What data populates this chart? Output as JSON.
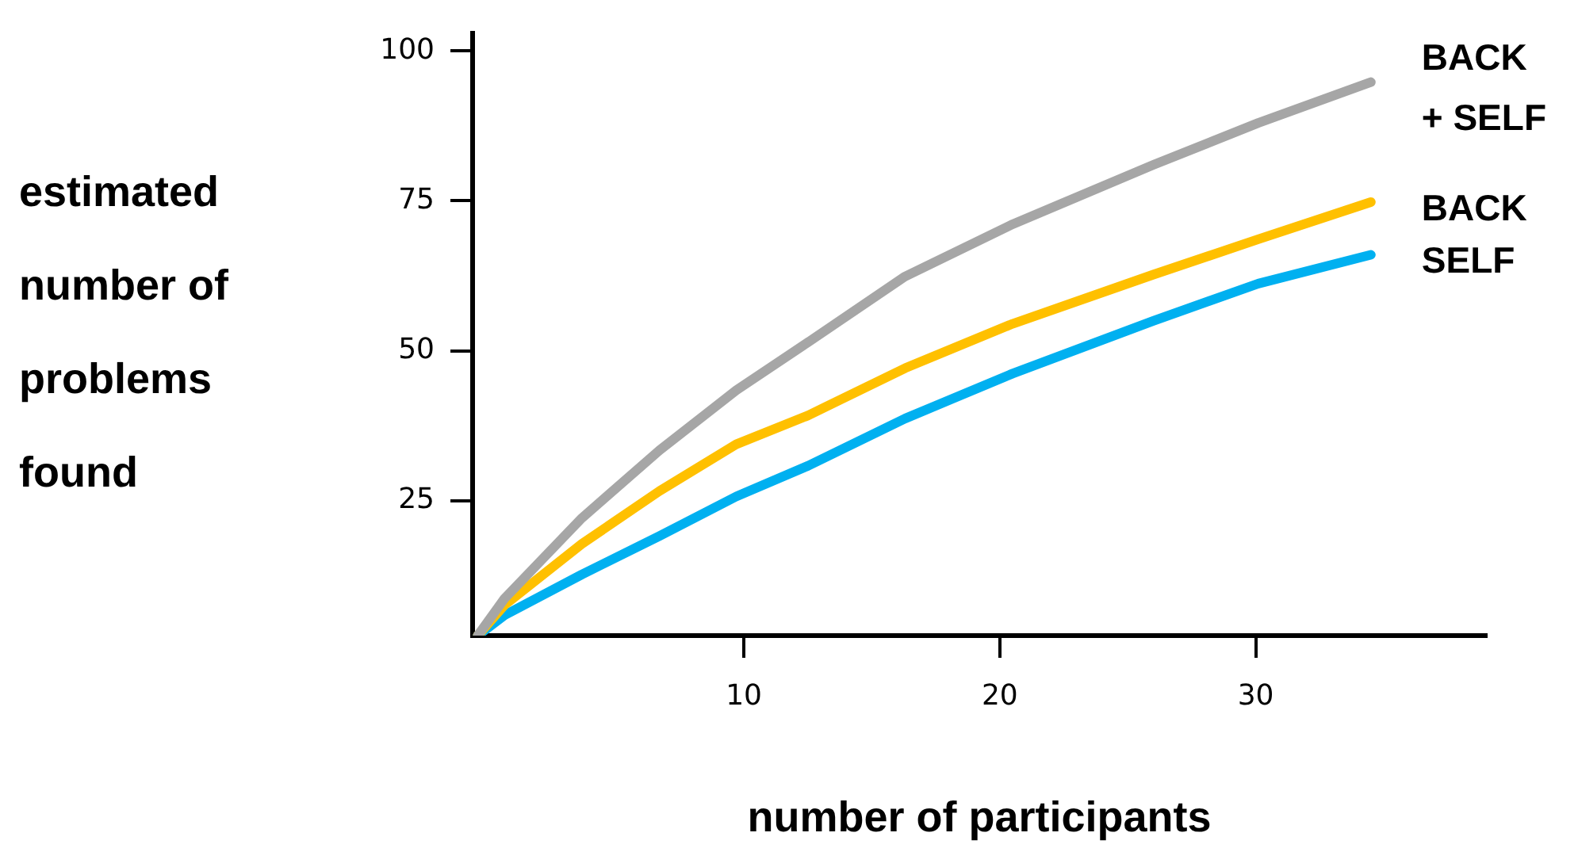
{
  "chart_data": {
    "type": "line",
    "xlabel": "number of participants",
    "ylabel": "estimated number of problems found",
    "xlim": [
      -0.6,
      39
    ],
    "ylim": [
      2.5,
      103
    ],
    "xticks": [
      10,
      20,
      30
    ],
    "yticks": [
      25,
      50,
      75,
      100
    ],
    "grid": false,
    "legend": false,
    "marker": "none",
    "line_style": "solid",
    "x": [
      -0.4,
      0.65,
      3.67,
      6.7,
      9.7,
      12.5,
      16.3,
      20.5,
      26,
      30.1,
      34.5
    ],
    "series": [
      {
        "name": "BACK + SELF",
        "color": "#a6a6a6",
        "values": [
          2.5,
          8.7,
          22.1,
          33.4,
          43.4,
          51.4,
          62.4,
          71.1,
          81,
          88,
          94.8
        ]
      },
      {
        "name": "BACK",
        "color": "#ffc000",
        "values": [
          2.5,
          7.6,
          17.8,
          26.6,
          34.4,
          39.2,
          47.1,
          54.5,
          62.7,
          68.6,
          74.8
        ]
      },
      {
        "name": "SELF",
        "color": "#00b0f0",
        "values": [
          2.5,
          5.9,
          12.7,
          19.1,
          25.7,
          30.8,
          38.7,
          46.2,
          55,
          61.2,
          66
        ]
      }
    ]
  }
}
